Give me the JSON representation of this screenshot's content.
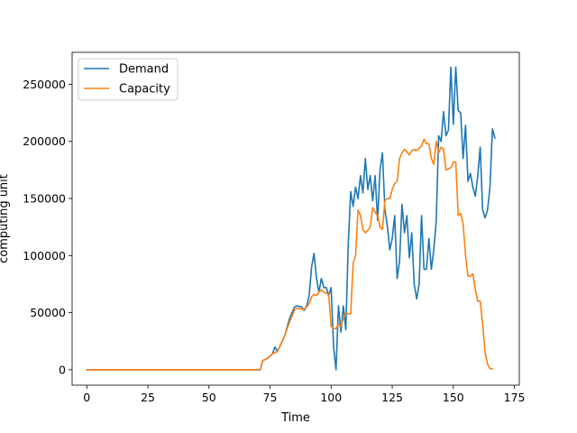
{
  "chart_data": {
    "type": "line",
    "xlabel": "Time",
    "ylabel": "computing unit",
    "xlim": [
      -6,
      177
    ],
    "ylim": [
      -13500,
      278000
    ],
    "xticks": [
      0,
      25,
      50,
      75,
      100,
      125,
      150,
      175
    ],
    "yticks": [
      0,
      50000,
      100000,
      150000,
      200000,
      250000
    ],
    "legend": {
      "position": "top-left"
    },
    "grid": false,
    "series": [
      {
        "name": "Demand",
        "color": "#1f77b4",
        "points": [
          [
            0,
            0
          ],
          [
            71,
            0
          ],
          [
            72,
            8000
          ],
          [
            74,
            10000
          ],
          [
            76,
            14000
          ],
          [
            77,
            20000
          ],
          [
            78,
            16000
          ],
          [
            80,
            25000
          ],
          [
            81,
            30000
          ],
          [
            83,
            45000
          ],
          [
            85,
            55000
          ],
          [
            86,
            56000
          ],
          [
            88,
            55000
          ],
          [
            89,
            52000
          ],
          [
            90,
            56000
          ],
          [
            91,
            65000
          ],
          [
            92,
            90000
          ],
          [
            93,
            102000
          ],
          [
            94,
            80000
          ],
          [
            95,
            68000
          ],
          [
            96,
            80000
          ],
          [
            97,
            72000
          ],
          [
            98,
            72000
          ],
          [
            99,
            65000
          ],
          [
            100,
            72000
          ],
          [
            101,
            20000
          ],
          [
            102,
            0
          ],
          [
            103,
            56000
          ],
          [
            104,
            33000
          ],
          [
            105,
            56000
          ],
          [
            106,
            35000
          ],
          [
            107,
            110000
          ],
          [
            108,
            156000
          ],
          [
            109,
            143000
          ],
          [
            110,
            160000
          ],
          [
            111,
            150000
          ],
          [
            112,
            170000
          ],
          [
            113,
            155000
          ],
          [
            114,
            185000
          ],
          [
            115,
            158000
          ],
          [
            116,
            170000
          ],
          [
            117,
            148000
          ],
          [
            118,
            170000
          ],
          [
            119,
            131000
          ],
          [
            120,
            175000
          ],
          [
            121,
            190000
          ],
          [
            122,
            140000
          ],
          [
            123,
            126000
          ],
          [
            124,
            105000
          ],
          [
            125,
            115000
          ],
          [
            126,
            135000
          ],
          [
            127,
            80000
          ],
          [
            128,
            95000
          ],
          [
            129,
            145000
          ],
          [
            130,
            120000
          ],
          [
            131,
            135000
          ],
          [
            132,
            98000
          ],
          [
            133,
            120000
          ],
          [
            134,
            75000
          ],
          [
            135,
            62000
          ],
          [
            136,
            75000
          ],
          [
            137,
            135000
          ],
          [
            138,
            88000
          ],
          [
            139,
            88000
          ],
          [
            140,
            115000
          ],
          [
            141,
            88000
          ],
          [
            142,
            105000
          ],
          [
            143,
            130000
          ],
          [
            144,
            205000
          ],
          [
            145,
            200000
          ],
          [
            146,
            226000
          ],
          [
            147,
            205000
          ],
          [
            148,
            210000
          ],
          [
            149,
            265000
          ],
          [
            150,
            215000
          ],
          [
            151,
            265000
          ],
          [
            152,
            227000
          ],
          [
            153,
            225000
          ],
          [
            154,
            185000
          ],
          [
            155,
            214000
          ],
          [
            156,
            165000
          ],
          [
            157,
            172000
          ],
          [
            158,
            160000
          ],
          [
            159,
            152000
          ],
          [
            160,
            170000
          ],
          [
            161,
            195000
          ],
          [
            162,
            140000
          ],
          [
            163,
            133000
          ],
          [
            164,
            140000
          ],
          [
            165,
            160000
          ],
          [
            166,
            211000
          ],
          [
            167,
            203000
          ]
        ]
      },
      {
        "name": "Capacity",
        "color": "#ff7f0e",
        "points": [
          [
            0,
            0
          ],
          [
            71,
            0
          ],
          [
            72,
            8000
          ],
          [
            74,
            10000
          ],
          [
            76,
            14000
          ],
          [
            78,
            16000
          ],
          [
            80,
            25000
          ],
          [
            81,
            30000
          ],
          [
            83,
            42000
          ],
          [
            85,
            52000
          ],
          [
            86,
            54000
          ],
          [
            88,
            53000
          ],
          [
            89,
            53000
          ],
          [
            90,
            55000
          ],
          [
            91,
            58000
          ],
          [
            92,
            64000
          ],
          [
            93,
            66000
          ],
          [
            94,
            65000
          ],
          [
            95,
            68000
          ],
          [
            96,
            70000
          ],
          [
            97,
            68000
          ],
          [
            98,
            67000
          ],
          [
            99,
            66000
          ],
          [
            100,
            38000
          ],
          [
            101,
            36000
          ],
          [
            102,
            36000
          ],
          [
            103,
            40000
          ],
          [
            104,
            38000
          ],
          [
            105,
            45000
          ],
          [
            106,
            50000
          ],
          [
            107,
            49000
          ],
          [
            108,
            49000
          ],
          [
            109,
            93000
          ],
          [
            110,
            100000
          ],
          [
            111,
            140000
          ],
          [
            112,
            135000
          ],
          [
            113,
            123000
          ],
          [
            114,
            120000
          ],
          [
            115,
            122000
          ],
          [
            116,
            125000
          ],
          [
            117,
            142000
          ],
          [
            118,
            138000
          ],
          [
            119,
            135000
          ],
          [
            120,
            125000
          ],
          [
            121,
            123000
          ],
          [
            122,
            148000
          ],
          [
            123,
            150000
          ],
          [
            124,
            150000
          ],
          [
            125,
            158000
          ],
          [
            126,
            163000
          ],
          [
            127,
            165000
          ],
          [
            128,
            185000
          ],
          [
            129,
            190000
          ],
          [
            130,
            193000
          ],
          [
            131,
            191000
          ],
          [
            132,
            188000
          ],
          [
            133,
            192000
          ],
          [
            134,
            193000
          ],
          [
            135,
            192000
          ],
          [
            136,
            194000
          ],
          [
            137,
            196000
          ],
          [
            138,
            202000
          ],
          [
            139,
            198000
          ],
          [
            140,
            198000
          ],
          [
            141,
            185000
          ],
          [
            142,
            180000
          ],
          [
            143,
            200000
          ],
          [
            144,
            190000
          ],
          [
            145,
            195000
          ],
          [
            146,
            193000
          ],
          [
            147,
            175000
          ],
          [
            148,
            176000
          ],
          [
            149,
            177000
          ],
          [
            150,
            182000
          ],
          [
            151,
            182000
          ],
          [
            152,
            135000
          ],
          [
            153,
            137000
          ],
          [
            154,
            128000
          ],
          [
            155,
            100000
          ],
          [
            156,
            82000
          ],
          [
            157,
            82000
          ],
          [
            158,
            84000
          ],
          [
            159,
            70000
          ],
          [
            160,
            60000
          ],
          [
            161,
            60000
          ],
          [
            162,
            40000
          ],
          [
            163,
            15000
          ],
          [
            164,
            5000
          ],
          [
            165,
            1000
          ],
          [
            166,
            1000
          ]
        ]
      }
    ]
  }
}
